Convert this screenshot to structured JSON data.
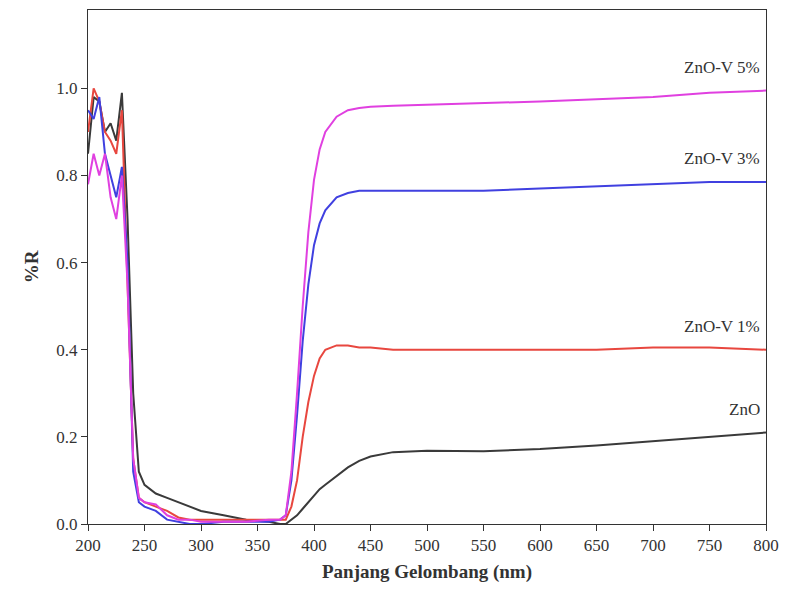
{
  "chart_data": {
    "type": "line",
    "x_label": "Panjang Gelombang (nm)",
    "y_label": "%R",
    "x": [
      200,
      205,
      210,
      215,
      220,
      225,
      230,
      235,
      240,
      245,
      250,
      260,
      270,
      280,
      290,
      300,
      320,
      340,
      360,
      370,
      375,
      380,
      385,
      390,
      395,
      400,
      405,
      410,
      420,
      430,
      440,
      450,
      470,
      500,
      550,
      600,
      650,
      700,
      750,
      800
    ],
    "series": [
      {
        "name": "ZnO",
        "color": "#3a3a3a",
        "values": [
          0.85,
          0.98,
          0.97,
          0.9,
          0.92,
          0.88,
          0.99,
          0.7,
          0.3,
          0.12,
          0.09,
          0.07,
          0.06,
          0.05,
          0.04,
          0.03,
          0.02,
          0.01,
          0.005,
          0.0,
          0.0,
          0.01,
          0.02,
          0.035,
          0.05,
          0.065,
          0.08,
          0.09,
          0.11,
          0.13,
          0.145,
          0.155,
          0.165,
          0.168,
          0.167,
          0.172,
          0.18,
          0.19,
          0.2,
          0.21
        ]
      },
      {
        "name": "ZnO-V 1%",
        "color": "#e8473f",
        "values": [
          0.9,
          1.0,
          0.97,
          0.9,
          0.88,
          0.85,
          0.95,
          0.55,
          0.15,
          0.06,
          0.05,
          0.04,
          0.03,
          0.015,
          0.01,
          0.01,
          0.01,
          0.01,
          0.01,
          0.01,
          0.01,
          0.04,
          0.1,
          0.2,
          0.28,
          0.34,
          0.38,
          0.4,
          0.41,
          0.41,
          0.405,
          0.405,
          0.4,
          0.4,
          0.4,
          0.4,
          0.4,
          0.405,
          0.405,
          0.4
        ]
      },
      {
        "name": "ZnO-V 3%",
        "color": "#4040e0",
        "values": [
          0.95,
          0.93,
          0.98,
          0.85,
          0.8,
          0.75,
          0.82,
          0.6,
          0.12,
          0.05,
          0.04,
          0.03,
          0.01,
          0.005,
          0.0,
          0.0,
          0.005,
          0.005,
          0.005,
          0.01,
          0.02,
          0.1,
          0.25,
          0.42,
          0.55,
          0.64,
          0.69,
          0.72,
          0.75,
          0.76,
          0.765,
          0.765,
          0.765,
          0.765,
          0.765,
          0.77,
          0.775,
          0.78,
          0.785,
          0.785
        ]
      },
      {
        "name": "ZnO-V 5%",
        "color": "#e040e0",
        "values": [
          0.78,
          0.85,
          0.8,
          0.85,
          0.75,
          0.7,
          0.8,
          0.55,
          0.15,
          0.06,
          0.05,
          0.045,
          0.02,
          0.01,
          0.01,
          0.005,
          0.005,
          0.005,
          0.01,
          0.01,
          0.02,
          0.12,
          0.3,
          0.5,
          0.67,
          0.79,
          0.86,
          0.9,
          0.935,
          0.95,
          0.955,
          0.958,
          0.96,
          0.962,
          0.965,
          0.97,
          0.975,
          0.98,
          0.99,
          0.995
        ]
      }
    ],
    "xlim": [
      200,
      800
    ],
    "xticks": [
      200,
      250,
      300,
      350,
      400,
      450,
      500,
      550,
      600,
      650,
      700,
      750,
      800
    ],
    "ylim": [
      0,
      1.18
    ],
    "yticks": [
      {
        "value": 0,
        "label": "0.0"
      },
      0.2,
      0.4,
      0.6,
      0.8,
      {
        "value": 1,
        "label": "1.0"
      }
    ],
    "grid": false
  }
}
